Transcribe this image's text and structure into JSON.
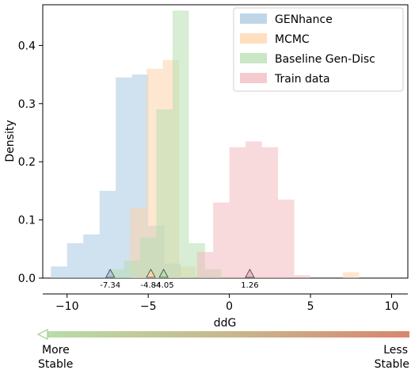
{
  "chart_data": {
    "type": "bar",
    "subtype": "overlaid-histogram",
    "xlabel": "ddG",
    "ylabel": "Density",
    "xlim": [
      -11.5,
      11
    ],
    "ylim": [
      0,
      0.47
    ],
    "x_ticks": [
      -10,
      -5,
      0,
      5,
      10
    ],
    "x_tick_labels": [
      "−10",
      "−5",
      "0",
      "5",
      "10"
    ],
    "y_ticks": [
      0.0,
      0.1,
      0.2,
      0.3,
      0.4
    ],
    "y_tick_labels": [
      "0.0",
      "0.1",
      "0.2",
      "0.3",
      "0.4"
    ],
    "legend_position": "top-right",
    "series": [
      {
        "name": "GENhance",
        "color": "#a9c8e2",
        "bins": [
          {
            "x0": -11.0,
            "x1": -10.0,
            "value": 0.02
          },
          {
            "x0": -10.0,
            "x1": -9.0,
            "value": 0.06
          },
          {
            "x0": -9.0,
            "x1": -8.0,
            "value": 0.075
          },
          {
            "x0": -8.0,
            "x1": -7.0,
            "value": 0.15
          },
          {
            "x0": -7.0,
            "x1": -6.0,
            "value": 0.345
          },
          {
            "x0": -6.0,
            "x1": -5.0,
            "value": 0.35
          },
          {
            "x0": -5.0,
            "x1": -4.0,
            "value": 0.09
          },
          {
            "x0": -4.0,
            "x1": -3.0,
            "value": 0.025
          }
        ]
      },
      {
        "name": "MCMC",
        "color": "#fdd4aa",
        "bins": [
          {
            "x0": -6.1,
            "x1": -5.1,
            "value": 0.12
          },
          {
            "x0": -5.1,
            "x1": -4.1,
            "value": 0.36
          },
          {
            "x0": -4.1,
            "x1": -3.1,
            "value": 0.375
          },
          {
            "x0": -3.1,
            "x1": -2.1,
            "value": 0.02
          },
          {
            "x0": 7.0,
            "x1": 8.0,
            "value": 0.01
          }
        ]
      },
      {
        "name": "Baseline Gen-Disc",
        "color": "#b7deb1",
        "bins": [
          {
            "x0": -7.5,
            "x1": -6.5,
            "value": 0.015
          },
          {
            "x0": -6.5,
            "x1": -5.5,
            "value": 0.03
          },
          {
            "x0": -5.5,
            "x1": -4.5,
            "value": 0.07
          },
          {
            "x0": -4.5,
            "x1": -3.5,
            "value": 0.29
          },
          {
            "x0": -3.5,
            "x1": -2.5,
            "value": 0.46
          },
          {
            "x0": -2.5,
            "x1": -1.5,
            "value": 0.06
          },
          {
            "x0": -1.5,
            "x1": -0.5,
            "value": 0.015
          }
        ]
      },
      {
        "name": "Train data",
        "color": "#f2b9c0",
        "bins": [
          {
            "x0": -2.0,
            "x1": -1.0,
            "value": 0.045
          },
          {
            "x0": -1.0,
            "x1": 0.0,
            "value": 0.13
          },
          {
            "x0": 0.0,
            "x1": 1.0,
            "value": 0.225
          },
          {
            "x0": 1.0,
            "x1": 2.0,
            "value": 0.235
          },
          {
            "x0": 2.0,
            "x1": 3.0,
            "value": 0.225
          },
          {
            "x0": 3.0,
            "x1": 4.0,
            "value": 0.135
          },
          {
            "x0": 4.0,
            "x1": 5.0,
            "value": 0.005
          }
        ]
      }
    ],
    "mean_markers": [
      {
        "value": -7.34,
        "label": "-7.34",
        "color": "#a9c8e2"
      },
      {
        "value": -4.84,
        "label": "-4.84",
        "color": "#fdd4aa"
      },
      {
        "value": -4.05,
        "label": "-4.05",
        "color": "#b7deb1"
      },
      {
        "value": 1.26,
        "label": "1.26",
        "color": "#f2b9c0"
      }
    ],
    "stability_arrow": {
      "left_label": [
        "More",
        "Stable"
      ],
      "right_label": [
        "Less",
        "Stable"
      ],
      "left_color": "#3d8b2f",
      "right_color": "#b03a2e"
    }
  }
}
